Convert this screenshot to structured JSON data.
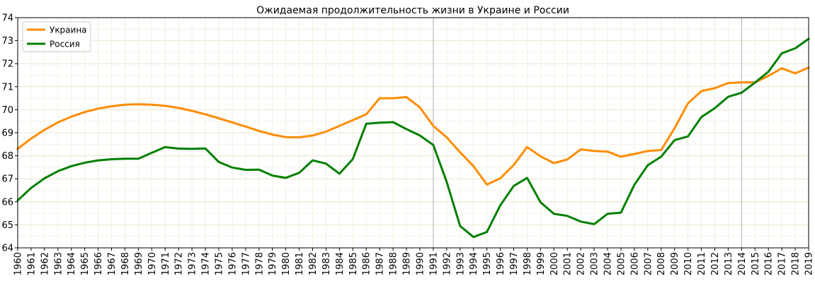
{
  "chart_data": {
    "type": "line",
    "title": "Ожидаемая продолжительность жизни в Украине и России",
    "xlabel": "",
    "ylabel": "",
    "xlim": [
      1960,
      2019
    ],
    "ylim": [
      64,
      74
    ],
    "grid": true,
    "legend": "top-left",
    "x": [
      1960,
      1961,
      1962,
      1963,
      1964,
      1965,
      1966,
      1967,
      1968,
      1969,
      1970,
      1971,
      1972,
      1973,
      1974,
      1975,
      1976,
      1977,
      1978,
      1979,
      1980,
      1981,
      1982,
      1983,
      1984,
      1985,
      1986,
      1987,
      1988,
      1989,
      1990,
      1991,
      1992,
      1993,
      1994,
      1995,
      1996,
      1997,
      1998,
      1999,
      2000,
      2001,
      2002,
      2003,
      2004,
      2005,
      2006,
      2007,
      2008,
      2009,
      2010,
      2011,
      2012,
      2013,
      2014,
      2015,
      2016,
      2017,
      2018,
      2019
    ],
    "y_ticks": [
      64,
      65,
      66,
      67,
      68,
      69,
      70,
      71,
      72,
      73,
      74
    ],
    "vlines": [
      1991,
      2014
    ],
    "series": [
      {
        "name": "Украина",
        "color": "#ff8c00",
        "values": [
          68.3,
          68.75,
          69.13,
          69.45,
          69.7,
          69.9,
          70.05,
          70.15,
          70.22,
          70.24,
          70.22,
          70.17,
          70.08,
          69.95,
          69.8,
          69.63,
          69.45,
          69.27,
          69.08,
          68.92,
          68.81,
          68.8,
          68.88,
          69.05,
          69.3,
          69.55,
          69.8,
          70.5,
          70.5,
          70.55,
          70.1,
          69.3,
          68.8,
          68.15,
          67.55,
          66.75,
          67.02,
          67.6,
          68.38,
          67.98,
          67.68,
          67.84,
          68.28,
          68.21,
          68.18,
          67.96,
          68.08,
          68.21,
          68.25,
          69.2,
          70.28,
          70.81,
          70.94,
          71.16,
          71.19,
          71.19,
          71.47,
          71.8,
          71.58,
          71.83
        ]
      },
      {
        "name": "Россия",
        "color": "#008000",
        "values": [
          66.06,
          66.6,
          67.02,
          67.33,
          67.55,
          67.7,
          67.8,
          67.85,
          67.87,
          67.87,
          68.13,
          68.38,
          68.31,
          68.3,
          68.32,
          67.73,
          67.49,
          67.39,
          67.4,
          67.14,
          67.04,
          67.26,
          67.8,
          67.66,
          67.22,
          67.86,
          69.39,
          69.44,
          69.46,
          69.16,
          68.88,
          68.47,
          66.87,
          64.95,
          64.47,
          64.69,
          65.85,
          66.69,
          67.04,
          65.98,
          65.48,
          65.39,
          65.14,
          65.03,
          65.48,
          65.53,
          66.74,
          67.59,
          67.96,
          68.68,
          68.84,
          69.68,
          70.07,
          70.56,
          70.74,
          71.18,
          71.65,
          72.45,
          72.67,
          73.08
        ]
      }
    ]
  }
}
